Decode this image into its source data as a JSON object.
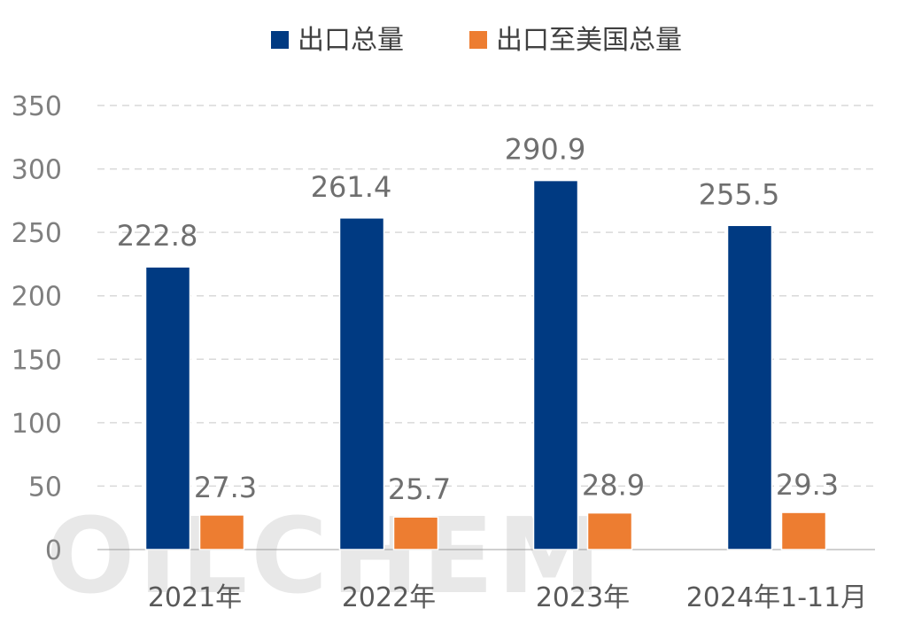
{
  "watermark": "OILCHEM",
  "chart_data": {
    "type": "bar",
    "categories": [
      "2021年",
      "2022年",
      "2023年",
      "2024年1-11月"
    ],
    "series": [
      {
        "name": "出口总量",
        "values": [
          222.8,
          261.4,
          290.9,
          255.5
        ],
        "color": "#003a82"
      },
      {
        "name": "出口至美国总量",
        "values": [
          27.3,
          25.7,
          28.9,
          29.3
        ],
        "color": "#ed7d31"
      }
    ],
    "data_labels": [
      [
        "222.8",
        "261.4",
        "290.9",
        "255.5"
      ],
      [
        "27.3",
        "25.7",
        "28.9",
        "29.3"
      ]
    ],
    "y_ticks": [
      "0",
      "50",
      "100",
      "150",
      "200",
      "250",
      "300",
      "350"
    ],
    "ylim": [
      0,
      350
    ],
    "grid": true,
    "legend_position": "top-center"
  }
}
